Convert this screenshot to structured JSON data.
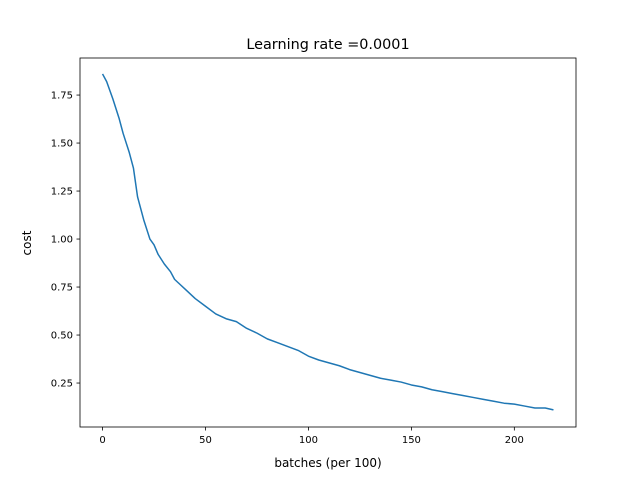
{
  "chart_data": {
    "type": "line",
    "title": "Learning rate =0.0001",
    "x_label": "batches (per 100)",
    "y_label": "cost",
    "x": [
      0,
      2,
      5,
      8,
      10,
      13,
      15,
      17,
      20,
      23,
      25,
      27,
      30,
      33,
      35,
      38,
      40,
      45,
      50,
      55,
      60,
      65,
      70,
      75,
      80,
      85,
      90,
      95,
      100,
      105,
      110,
      115,
      120,
      125,
      130,
      135,
      140,
      145,
      150,
      155,
      160,
      165,
      170,
      175,
      180,
      185,
      190,
      195,
      200,
      205,
      210,
      215,
      219
    ],
    "series": [
      {
        "name": "cost",
        "color": "#1f77b4",
        "values": [
          1.86,
          1.82,
          1.73,
          1.63,
          1.55,
          1.45,
          1.37,
          1.22,
          1.1,
          1.0,
          0.97,
          0.92,
          0.87,
          0.83,
          0.79,
          0.76,
          0.74,
          0.69,
          0.65,
          0.61,
          0.585,
          0.57,
          0.535,
          0.51,
          0.48,
          0.46,
          0.44,
          0.42,
          0.39,
          0.37,
          0.355,
          0.34,
          0.32,
          0.305,
          0.29,
          0.275,
          0.265,
          0.255,
          0.24,
          0.23,
          0.215,
          0.205,
          0.195,
          0.185,
          0.175,
          0.165,
          0.155,
          0.145,
          0.14,
          0.13,
          0.12,
          0.12,
          0.11
        ]
      }
    ],
    "xlim": [
      -10.95,
      229.95
    ],
    "xticks": [
      0,
      50,
      100,
      150,
      200
    ],
    "ylim": [
      0.021,
      1.943
    ],
    "yticks": [
      0.25,
      {
        "value": 0.5,
        "label": "0.50"
      },
      0.75,
      {
        "value": 1.0,
        "label": "1.00"
      },
      1.25,
      {
        "value": 1.5,
        "label": "1.50"
      },
      1.75
    ],
    "grid": false
  }
}
